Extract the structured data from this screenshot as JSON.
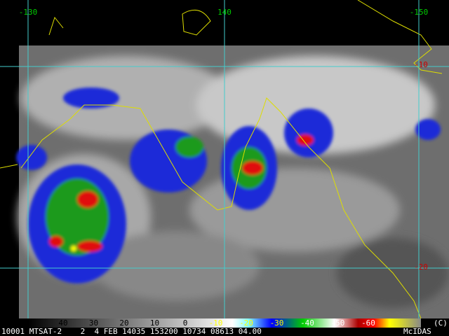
{
  "map": {
    "lon_labels": [
      "-130",
      "140",
      "-150"
    ],
    "lat_labels": [
      "-10",
      "-20"
    ]
  },
  "colorbar": {
    "labels": [
      "40",
      "30",
      "20",
      "10",
      "0",
      "-10",
      "-20",
      "-30",
      "-40",
      "-50",
      "-60"
    ]
  },
  "footer": {
    "text": "10001 MTSAT-2    2  4 FEB 14035 153200 10734 08613 04.00",
    "brand": "McIDAS",
    "copyright": "(C)"
  }
}
